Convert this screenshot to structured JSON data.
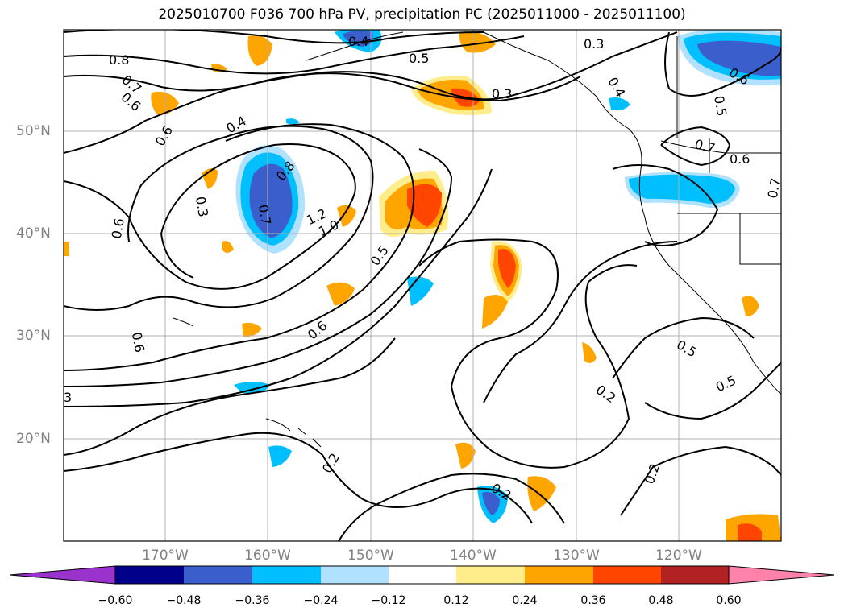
{
  "title": "2025010700 F036 700 hPa PV, precipitation PC (2025011000 - 2025011100)",
  "lat_labels": [
    "50°N",
    "40°N",
    "30°N",
    "20°N"
  ],
  "lon_labels": [
    "170°W",
    "160°W",
    "150°W",
    "140°W",
    "130°W",
    "120°W"
  ],
  "contour_labels": [
    "0.8",
    "0.7",
    "0.6",
    "0.6",
    "0.4",
    "0.4",
    "0.5",
    "0.3",
    "0.3",
    "0.4",
    "0.6",
    "0.5",
    "0.7",
    "0.6",
    "0.7",
    "0.3",
    "0.8",
    "0.7",
    "1.2",
    "1.0",
    "0.6",
    "0.5",
    "0.6",
    "0.6",
    "3",
    "0.2",
    "0.2",
    "0.2",
    "0.2",
    "0.5",
    "0.5"
  ],
  "colorbar": {
    "ticks": [
      "−0.60",
      "−0.48",
      "−0.36",
      "−0.24",
      "−0.12",
      "0.12",
      "0.24",
      "0.36",
      "0.48",
      "0.60"
    ],
    "colors": [
      "#9a32cd",
      "#00008b",
      "#3a5fcd",
      "#00bfff",
      "#b0e2ff",
      "#ffffff",
      "#ffec8b",
      "#ffa500",
      "#ff4500",
      "#b22222",
      "#ff82ab"
    ]
  },
  "colors": {
    "positive": [
      "#ffec8b",
      "#ffa500",
      "#ff4500"
    ],
    "negative": [
      "#b0e2ff",
      "#00bfff",
      "#3a5fcd"
    ]
  }
}
